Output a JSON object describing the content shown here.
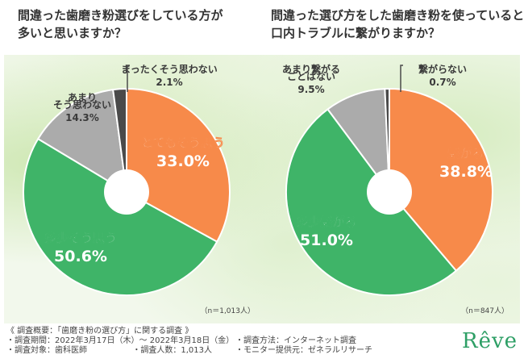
{
  "chart_data": [
    {
      "type": "pie",
      "title": "間違った歯磨き粉選びをしている方が多いと思いますか？",
      "title_lines": [
        "間違った歯磨き粉選びをしている方が",
        "多いと思いますか？"
      ],
      "sample_note": "（n＝1,013人）",
      "slices": [
        {
          "label": "とてもそう思う",
          "label_lines": [
            "とてもそう思う"
          ],
          "value": 33.0,
          "display": "33.0%",
          "color": "#f78a4a"
        },
        {
          "label": "多少そう思う",
          "label_lines": [
            "多少そう思う"
          ],
          "value": 50.6,
          "display": "50.6%",
          "color": "#3fb468"
        },
        {
          "label": "あまりそう思わない",
          "label_lines": [
            "あまり",
            "そう思わない"
          ],
          "value": 14.3,
          "display": "14.3%",
          "color": "#ababab"
        },
        {
          "label": "まったくそう思わない",
          "label_lines": [
            "まったくそう思わない"
          ],
          "value": 2.1,
          "display": "2.1%",
          "color": "#4a4a4a"
        }
      ]
    },
    {
      "type": "pie",
      "title": "間違った選び方をした歯磨き粉を使っていると口内トラブルに繋がりますか？",
      "title_lines": [
        "間違った選び方をした歯磨き粉を使っていると",
        "口内トラブルに繋がりますか？"
      ],
      "sample_note": "（n＝847人）",
      "slices": [
        {
          "label": "繋がる",
          "label_lines": [
            "繋がる"
          ],
          "value": 38.8,
          "display": "38.8%",
          "color": "#f78a4a"
        },
        {
          "label": "多少繋がる",
          "label_lines": [
            "多少繋がる"
          ],
          "value": 51.0,
          "display": "51.0%",
          "color": "#3fb468"
        },
        {
          "label": "あまり繋がることはない",
          "label_lines": [
            "あまり繋がる",
            "ことはない"
          ],
          "value": 9.5,
          "display": "9.5%",
          "color": "#ababab"
        },
        {
          "label": "繋がらない",
          "label_lines": [
            "繋がらない"
          ],
          "value": 0.7,
          "display": "0.7%",
          "color": "#4a4a4a"
        }
      ]
    }
  ],
  "footer": {
    "overview": "《 調査概要：「歯磨き粉の選び方」に関する調査 》",
    "period": "・調査期間：2022年3月17日（木）〜 2022年3月18日（金）",
    "method": "・調査方法：インターネット調査",
    "target": "・調査対象：歯科医師",
    "count": "・調査人数：1,013人",
    "provider": "・モニター提供元：ゼネラルリサーチ"
  },
  "brand": "Rêve"
}
